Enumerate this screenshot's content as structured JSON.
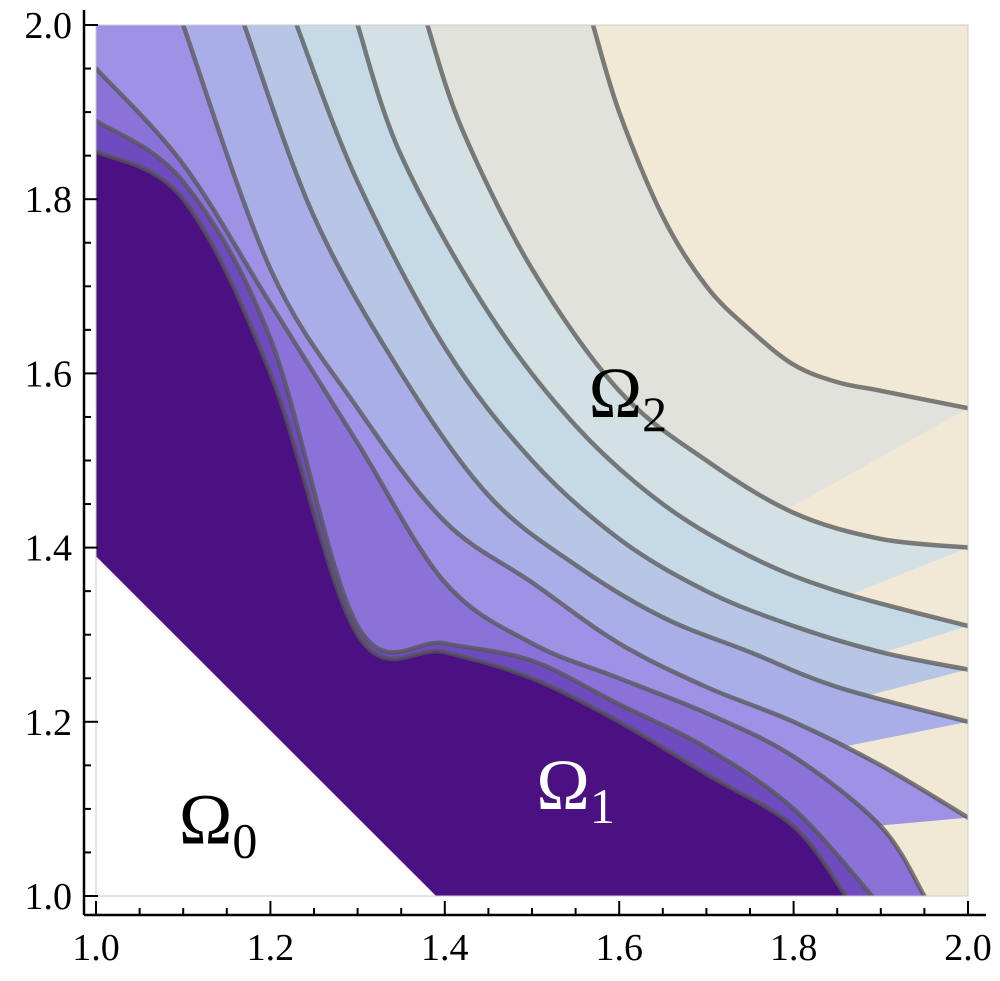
{
  "chart_data": {
    "type": "contour",
    "title": "",
    "xlabel": "",
    "ylabel": "",
    "xlim": [
      1.0,
      2.0
    ],
    "ylim": [
      1.0,
      2.0
    ],
    "x_ticks": [
      "1.0",
      "1.2",
      "1.4",
      "1.6",
      "1.8",
      "2.0"
    ],
    "y_ticks": [
      "1.0",
      "1.2",
      "1.4",
      "1.6",
      "1.8",
      "2.0"
    ],
    "grid": false,
    "legend": "none",
    "colors": [
      "#4b1183",
      "#6e4cbf",
      "#8a72d8",
      "#9e91e6",
      "#aaaee8",
      "#b8c6e6",
      "#c5dae6",
      "#d3e0e4",
      "#e2e2dc",
      "#f1e8d6"
    ],
    "contour_levels": [
      {
        "x": [
          1.0,
          1.1,
          1.2,
          1.3,
          1.4,
          1.5,
          1.6,
          1.7,
          1.8,
          1.86
        ],
        "y": [
          1.855,
          1.8,
          1.6,
          1.3,
          1.28,
          1.25,
          1.2,
          1.14,
          1.08,
          1.0
        ]
      },
      {
        "x": [
          1.0,
          1.1,
          1.2,
          1.3,
          1.4,
          1.5,
          1.6,
          1.7,
          1.8,
          1.89
        ],
        "y": [
          1.89,
          1.82,
          1.64,
          1.31,
          1.29,
          1.27,
          1.22,
          1.17,
          1.1,
          1.0
        ]
      },
      {
        "x": [
          1.0,
          1.1,
          1.2,
          1.3,
          1.4,
          1.5,
          1.6,
          1.7,
          1.8,
          1.9,
          1.95
        ],
        "y": [
          1.95,
          1.84,
          1.68,
          1.52,
          1.36,
          1.29,
          1.25,
          1.21,
          1.16,
          1.08,
          1.0
        ]
      },
      {
        "x": [
          1.1,
          1.2,
          1.3,
          1.4,
          1.5,
          1.6,
          1.7,
          1.8,
          1.9,
          2.0
        ],
        "y": [
          2.0,
          1.72,
          1.56,
          1.43,
          1.36,
          1.29,
          1.24,
          1.2,
          1.15,
          1.09
        ]
      },
      {
        "x": [
          1.17,
          1.25,
          1.35,
          1.45,
          1.55,
          1.65,
          1.75,
          1.85,
          2.0
        ],
        "y": [
          2.0,
          1.78,
          1.6,
          1.46,
          1.38,
          1.32,
          1.28,
          1.24,
          1.2
        ]
      },
      {
        "x": [
          1.23,
          1.3,
          1.4,
          1.5,
          1.6,
          1.7,
          1.8,
          1.9,
          2.0
        ],
        "y": [
          2.0,
          1.82,
          1.63,
          1.5,
          1.41,
          1.35,
          1.31,
          1.28,
          1.26
        ]
      },
      {
        "x": [
          1.3,
          1.35,
          1.45,
          1.55,
          1.65,
          1.75,
          1.85,
          2.0
        ],
        "y": [
          2.0,
          1.85,
          1.67,
          1.54,
          1.45,
          1.39,
          1.35,
          1.31
        ]
      },
      {
        "x": [
          1.38,
          1.42,
          1.5,
          1.6,
          1.7,
          1.8,
          1.9,
          2.0
        ],
        "y": [
          2.0,
          1.88,
          1.72,
          1.58,
          1.5,
          1.44,
          1.41,
          1.4
        ]
      },
      {
        "x": [
          1.57,
          1.6,
          1.65,
          1.7,
          1.75,
          1.8,
          1.85,
          1.9,
          2.0
        ],
        "y": [
          2.0,
          1.9,
          1.78,
          1.7,
          1.65,
          1.61,
          1.59,
          1.58,
          1.56
        ]
      }
    ],
    "excluded_region_boundary": {
      "x": [
        1.0,
        1.39
      ],
      "y": [
        1.39,
        1.0
      ]
    },
    "annotations": [
      {
        "base": "Ω",
        "sub": "0",
        "x": 1.14,
        "y": 1.06,
        "color": "#000000"
      },
      {
        "base": "Ω",
        "sub": "1",
        "x": 1.55,
        "y": 1.1,
        "color": "#ffffff"
      },
      {
        "base": "Ω",
        "sub": "2",
        "x": 1.61,
        "y": 1.55,
        "color": "#000000"
      }
    ]
  }
}
